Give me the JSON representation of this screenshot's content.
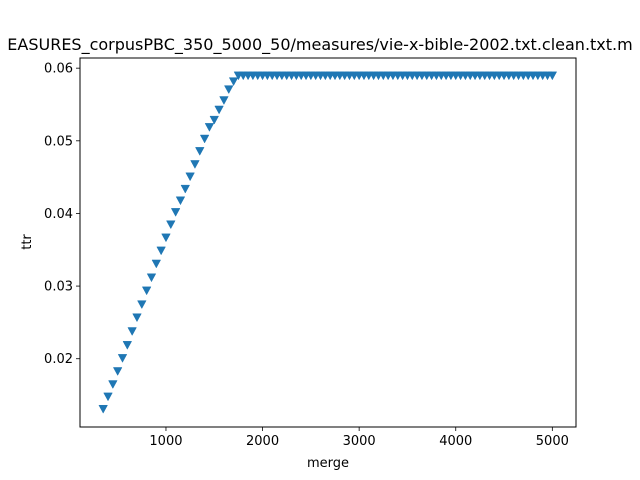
{
  "chart_data": {
    "type": "scatter",
    "title": "EASURES_corpusPBC_350_5000_50/measures/vie-x-bible-2002.txt.clean.txt.m",
    "xlabel": "merge",
    "ylabel": "ttr",
    "xlim": [
      110,
      5245
    ],
    "ylim": [
      0.0106,
      0.0614
    ],
    "xticks": [
      1000,
      2000,
      3000,
      4000,
      5000
    ],
    "yticks": [
      0.02,
      0.03,
      0.04,
      0.05,
      0.06
    ],
    "xtick_labels": [
      "1000",
      "2000",
      "3000",
      "4000",
      "5000"
    ],
    "ytick_labels": [
      "0.02",
      "0.03",
      "0.04",
      "0.05",
      "0.06"
    ],
    "marker": "triangle_down",
    "grid": false,
    "legend": false,
    "colors": {
      "series": "#1f77b4"
    },
    "series": [
      {
        "x": [
          350,
          400,
          450,
          500,
          550,
          600,
          650,
          700,
          750,
          800,
          850,
          900,
          950,
          1000,
          1050,
          1100,
          1150,
          1200,
          1250,
          1300,
          1350,
          1400,
          1450,
          1500,
          1550,
          1600,
          1650,
          1700,
          1750,
          1800,
          1850,
          1900,
          1950,
          2000,
          2050,
          2100,
          2150,
          2200,
          2250,
          2300,
          2350,
          2400,
          2450,
          2500,
          2550,
          2600,
          2650,
          2700,
          2750,
          2800,
          2850,
          2900,
          2950,
          3000,
          3050,
          3100,
          3150,
          3200,
          3250,
          3300,
          3350,
          3400,
          3450,
          3500,
          3550,
          3600,
          3650,
          3700,
          3750,
          3800,
          3850,
          3900,
          3950,
          4000,
          4050,
          4100,
          4150,
          4200,
          4250,
          4300,
          4350,
          4400,
          4450,
          4500,
          4550,
          4600,
          4650,
          4700,
          4750,
          4800,
          4850,
          4900,
          4950,
          5000
        ],
        "y": [
          0.0131,
          0.0148,
          0.0165,
          0.0183,
          0.0201,
          0.0219,
          0.0238,
          0.0257,
          0.0275,
          0.0294,
          0.0312,
          0.0331,
          0.0349,
          0.0367,
          0.0385,
          0.0402,
          0.0418,
          0.0434,
          0.0451,
          0.0468,
          0.0486,
          0.0503,
          0.0519,
          0.0529,
          0.0543,
          0.0556,
          0.0571,
          0.0582,
          0.059,
          0.059,
          0.059,
          0.059,
          0.059,
          0.059,
          0.059,
          0.059,
          0.059,
          0.059,
          0.059,
          0.059,
          0.059,
          0.059,
          0.059,
          0.059,
          0.059,
          0.059,
          0.059,
          0.059,
          0.059,
          0.059,
          0.059,
          0.059,
          0.059,
          0.059,
          0.059,
          0.059,
          0.059,
          0.059,
          0.059,
          0.059,
          0.059,
          0.059,
          0.059,
          0.059,
          0.059,
          0.059,
          0.059,
          0.059,
          0.059,
          0.059,
          0.059,
          0.059,
          0.059,
          0.059,
          0.059,
          0.059,
          0.059,
          0.059,
          0.059,
          0.059,
          0.059,
          0.059,
          0.059,
          0.059,
          0.059,
          0.059,
          0.059,
          0.059,
          0.059,
          0.059,
          0.059,
          0.059,
          0.059,
          0.059
        ]
      }
    ]
  }
}
